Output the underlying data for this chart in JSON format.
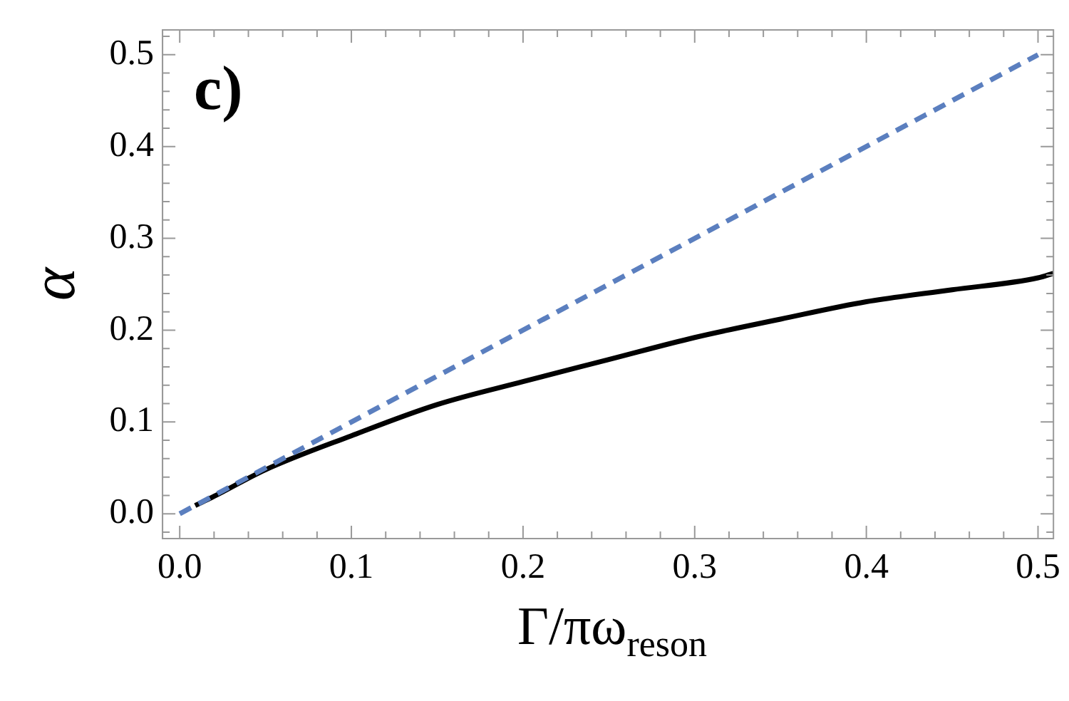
{
  "chart_data": {
    "type": "line",
    "xlabel": "Γ/πω$_{reson}$",
    "ylabel": "α",
    "annotations": [
      "c)"
    ],
    "xlim": [
      -0.01,
      0.509
    ],
    "ylim": [
      -0.027,
      0.527
    ],
    "xticks": [
      {
        "value": 0,
        "label": "0.0"
      },
      {
        "value": 0.02,
        "label": null
      },
      {
        "value": 0.04,
        "label": null
      },
      {
        "value": 0.06,
        "label": null
      },
      {
        "value": 0.08,
        "label": null
      },
      0.1,
      {
        "value": 0.12,
        "label": null
      },
      {
        "value": 0.14,
        "label": null
      },
      {
        "value": 0.16,
        "label": null
      },
      {
        "value": 0.18,
        "label": null
      },
      0.2,
      {
        "value": 0.22,
        "label": null
      },
      {
        "value": 0.24,
        "label": null
      },
      {
        "value": 0.26,
        "label": null
      },
      {
        "value": 0.28,
        "label": null
      },
      0.3,
      {
        "value": 0.32,
        "label": null
      },
      {
        "value": 0.34,
        "label": null
      },
      {
        "value": 0.36,
        "label": null
      },
      {
        "value": 0.38,
        "label": null
      },
      0.4,
      {
        "value": 0.42,
        "label": null
      },
      {
        "value": 0.44,
        "label": null
      },
      {
        "value": 0.46,
        "label": null
      },
      {
        "value": 0.48,
        "label": null
      },
      0.5
    ],
    "yticks": [
      {
        "value": -0.02,
        "label": null
      },
      {
        "value": 0,
        "label": "0.0"
      },
      {
        "value": 0.02,
        "label": null
      },
      {
        "value": 0.04,
        "label": null
      },
      {
        "value": 0.06,
        "label": null
      },
      {
        "value": 0.08,
        "label": null
      },
      0.1,
      {
        "value": 0.12,
        "label": null
      },
      {
        "value": 0.14,
        "label": null
      },
      {
        "value": 0.16,
        "label": null
      },
      {
        "value": 0.18,
        "label": null
      },
      0.2,
      {
        "value": 0.22,
        "label": null
      },
      {
        "value": 0.24,
        "label": null
      },
      {
        "value": 0.26,
        "label": null
      },
      {
        "value": 0.28,
        "label": null
      },
      0.3,
      {
        "value": 0.32,
        "label": null
      },
      {
        "value": 0.34,
        "label": null
      },
      {
        "value": 0.36,
        "label": null
      },
      {
        "value": 0.38,
        "label": null
      },
      0.4,
      {
        "value": 0.42,
        "label": null
      },
      {
        "value": 0.44,
        "label": null
      },
      {
        "value": 0.46,
        "label": null
      },
      {
        "value": 0.48,
        "label": null
      },
      0.5,
      {
        "value": 0.52,
        "label": null
      }
    ],
    "grid": false,
    "legend": false,
    "marker": "none",
    "series": [
      {
        "color": "#5b7fbf",
        "line_style": "dashed",
        "x": [
          0,
          0.5
        ],
        "values": [
          0,
          0.5
        ]
      },
      {
        "color": "#000000",
        "line_style": "solid",
        "x": [
          0.009,
          0.02,
          0.05,
          0.1,
          0.15,
          0.2,
          0.25,
          0.3,
          0.35,
          0.4,
          0.45,
          0.5,
          0.509
        ],
        "values": [
          0.009,
          0.019,
          0.048,
          0.085,
          0.119,
          0.144,
          0.168,
          0.192,
          0.212,
          0.231,
          0.244,
          0.257,
          0.262
        ]
      }
    ]
  }
}
